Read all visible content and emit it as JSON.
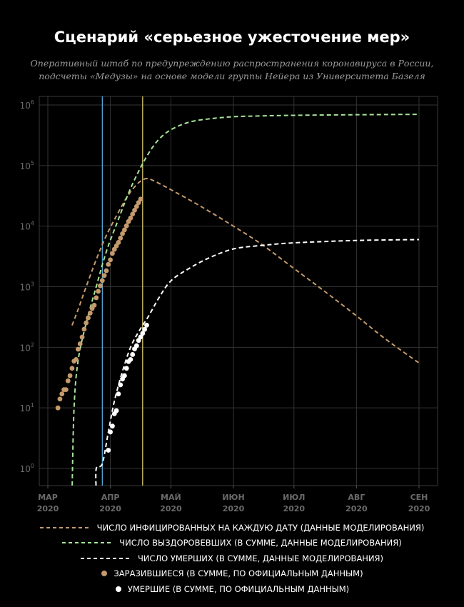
{
  "title": "Сценарий «серьезное ужесточение мер»",
  "subtitle": [
    "Оперативный штаб по предупреждению распространения коронавируса в России,",
    "подсчеты «Медузы» на основе модели группы Нейера из Университета Базеля"
  ],
  "chart_data": {
    "type": "line",
    "x_ticks": [
      {
        "date": "2020-03-01",
        "label": [
          "МАР",
          "2020"
        ]
      },
      {
        "date": "2020-04-01",
        "label": [
          "АПР",
          "2020"
        ]
      },
      {
        "date": "2020-05-01",
        "label": [
          "МАЙ",
          "2020"
        ]
      },
      {
        "date": "2020-06-01",
        "label": [
          "ИЮН",
          "2020"
        ]
      },
      {
        "date": "2020-07-01",
        "label": [
          "ИЮЛ",
          "2020"
        ]
      },
      {
        "date": "2020-08-01",
        "label": [
          "АВГ",
          "2020"
        ]
      },
      {
        "date": "2020-09-01",
        "label": [
          "СЕН",
          "2020"
        ]
      }
    ],
    "y_scale": "log",
    "y_range": [
      0.4,
      1500000
    ],
    "y_ticks": [
      {
        "value": 1,
        "base": "10",
        "exp": "0"
      },
      {
        "value": 10,
        "base": "10",
        "exp": "1"
      },
      {
        "value": 100,
        "base": "10",
        "exp": "2"
      },
      {
        "value": 1000,
        "base": "10",
        "exp": "3"
      },
      {
        "value": 10000,
        "base": "10",
        "exp": "4"
      },
      {
        "value": 100000,
        "base": "10",
        "exp": "5"
      },
      {
        "value": 1000000,
        "base": "10",
        "exp": "6"
      }
    ],
    "grid": true,
    "vertical_markers": [
      {
        "date": "2020-03-28",
        "color": "#5ab4e6"
      },
      {
        "date": "2020-04-17",
        "color": "#e8d77a"
      }
    ],
    "series": [
      {
        "name": "ЧИСЛО ИНФИЦИРОВАННЫХ НА КАЖДУЮ ДАТУ (ДАННЫЕ МОДЕЛИРОВАНИЯ)",
        "style": "dashed",
        "color": "#c49a6c",
        "points": [
          [
            "2020-03-13",
            230
          ],
          [
            "2020-03-16",
            420
          ],
          [
            "2020-03-20",
            1000
          ],
          [
            "2020-03-25",
            2800
          ],
          [
            "2020-03-30",
            7000
          ],
          [
            "2020-04-05",
            17000
          ],
          [
            "2020-04-10",
            33000
          ],
          [
            "2020-04-15",
            52000
          ],
          [
            "2020-04-19",
            61000
          ],
          [
            "2020-04-23",
            55000
          ],
          [
            "2020-05-01",
            40000
          ],
          [
            "2020-05-15",
            22000
          ],
          [
            "2020-06-01",
            10000
          ],
          [
            "2020-06-15",
            5000
          ],
          [
            "2020-07-01",
            2000
          ],
          [
            "2020-07-15",
            900
          ],
          [
            "2020-08-01",
            330
          ],
          [
            "2020-08-15",
            140
          ],
          [
            "2020-09-01",
            55
          ]
        ]
      },
      {
        "name": "ЧИСЛО ВЫЗДОРОВЕВШИХ (В СУММЕ, ДАННЫЕ МОДЕЛИРОВАНИЯ)",
        "style": "dashed",
        "color": "#a6e39a",
        "points": [
          [
            "2020-03-13",
            0.4
          ],
          [
            "2020-03-14",
            10
          ],
          [
            "2020-03-16",
            60
          ],
          [
            "2020-03-20",
            250
          ],
          [
            "2020-03-25",
            1000
          ],
          [
            "2020-03-30",
            3800
          ],
          [
            "2020-04-05",
            13000
          ],
          [
            "2020-04-10",
            35000
          ],
          [
            "2020-04-15",
            80000
          ],
          [
            "2020-04-20",
            160000
          ],
          [
            "2020-04-25",
            270000
          ],
          [
            "2020-05-01",
            390000
          ],
          [
            "2020-05-10",
            520000
          ],
          [
            "2020-05-20",
            590000
          ],
          [
            "2020-06-01",
            640000
          ],
          [
            "2020-06-15",
            660000
          ],
          [
            "2020-07-01",
            675000
          ],
          [
            "2020-08-01",
            690000
          ],
          [
            "2020-09-01",
            700000
          ]
        ]
      },
      {
        "name": "ЧИСЛО УМЕРШИХ (В СУММЕ, ДАННЫЕ МОДЕЛИРОВАНИЯ)",
        "style": "dashed",
        "color": "#ffffff",
        "points": [
          [
            "2020-03-25",
            0.4
          ],
          [
            "2020-03-25",
            1
          ],
          [
            "2020-03-28",
            1.2
          ],
          [
            "2020-03-31",
            4
          ],
          [
            "2020-04-03",
            13
          ],
          [
            "2020-04-07",
            40
          ],
          [
            "2020-04-11",
            100
          ],
          [
            "2020-04-15",
            180
          ],
          [
            "2020-04-20",
            330
          ],
          [
            "2020-04-25",
            650
          ],
          [
            "2020-05-01",
            1250
          ],
          [
            "2020-05-10",
            2000
          ],
          [
            "2020-05-20",
            3000
          ],
          [
            "2020-06-01",
            4200
          ],
          [
            "2020-06-15",
            4800
          ],
          [
            "2020-07-01",
            5300
          ],
          [
            "2020-08-01",
            5800
          ],
          [
            "2020-09-01",
            6000
          ]
        ]
      },
      {
        "name": "ЗАРАЗИВШИЕСЯ (В СУММЕ, ПО ОФИЦИАЛЬНЫМ ДАННЫМ)",
        "style": "dots",
        "color": "#c49a6c",
        "points": [
          [
            "2020-03-06",
            10
          ],
          [
            "2020-03-07",
            14
          ],
          [
            "2020-03-08",
            17
          ],
          [
            "2020-03-09",
            20
          ],
          [
            "2020-03-10",
            20
          ],
          [
            "2020-03-11",
            28
          ],
          [
            "2020-03-12",
            34
          ],
          [
            "2020-03-13",
            45
          ],
          [
            "2020-03-14",
            59
          ],
          [
            "2020-03-15",
            63
          ],
          [
            "2020-03-16",
            93
          ],
          [
            "2020-03-17",
            114
          ],
          [
            "2020-03-18",
            147
          ],
          [
            "2020-03-19",
            199
          ],
          [
            "2020-03-20",
            253
          ],
          [
            "2020-03-21",
            306
          ],
          [
            "2020-03-22",
            367
          ],
          [
            "2020-03-23",
            438
          ],
          [
            "2020-03-24",
            495
          ],
          [
            "2020-03-25",
            658
          ],
          [
            "2020-03-26",
            840
          ],
          [
            "2020-03-27",
            1036
          ],
          [
            "2020-03-28",
            1264
          ],
          [
            "2020-03-29",
            1534
          ],
          [
            "2020-03-30",
            1836
          ],
          [
            "2020-03-31",
            2337
          ],
          [
            "2020-04-01",
            2777
          ],
          [
            "2020-04-02",
            3548
          ],
          [
            "2020-04-03",
            4149
          ],
          [
            "2020-04-04",
            4731
          ],
          [
            "2020-04-05",
            5389
          ],
          [
            "2020-04-06",
            6343
          ],
          [
            "2020-04-07",
            7497
          ],
          [
            "2020-04-08",
            8672
          ],
          [
            "2020-04-09",
            10131
          ],
          [
            "2020-04-10",
            11917
          ],
          [
            "2020-04-11",
            13584
          ],
          [
            "2020-04-12",
            15770
          ],
          [
            "2020-04-13",
            18328
          ],
          [
            "2020-04-14",
            21102
          ],
          [
            "2020-04-15",
            24490
          ],
          [
            "2020-04-16",
            27938
          ]
        ]
      },
      {
        "name": "УМЕРШИЕ (В СУММЕ, ПО ОФИЦИАЛЬНЫМ ДАННЫМ)",
        "style": "dots",
        "color": "#ffffff",
        "points": [
          [
            "2020-03-31",
            2
          ],
          [
            "2020-04-01",
            4
          ],
          [
            "2020-04-02",
            5
          ],
          [
            "2020-04-03",
            8
          ],
          [
            "2020-04-04",
            9
          ],
          [
            "2020-04-05",
            17
          ],
          [
            "2020-04-06",
            24
          ],
          [
            "2020-04-07",
            30
          ],
          [
            "2020-04-08",
            34
          ],
          [
            "2020-04-09",
            45
          ],
          [
            "2020-04-10",
            58
          ],
          [
            "2020-04-11",
            63
          ],
          [
            "2020-04-12",
            76
          ],
          [
            "2020-04-13",
            94
          ],
          [
            "2020-04-14",
            106
          ],
          [
            "2020-04-15",
            130
          ],
          [
            "2020-04-16",
            148
          ],
          [
            "2020-04-17",
            170
          ],
          [
            "2020-04-18",
            198
          ],
          [
            "2020-04-19",
            232
          ]
        ]
      }
    ]
  }
}
